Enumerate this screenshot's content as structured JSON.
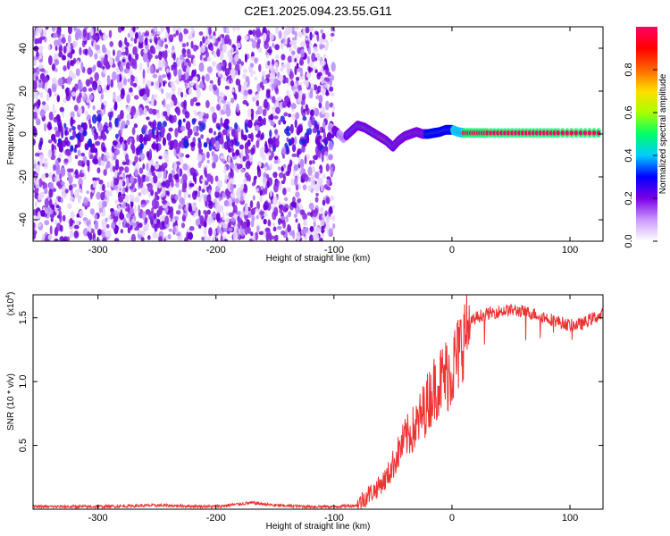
{
  "title": "C2E1.2025.094.23.55.G11",
  "chart_data": [
    {
      "type": "heatmap",
      "xlabel": "Height of straight line (km)",
      "ylabel": "Frequency (Hz)",
      "xlim": [
        -355,
        128
      ],
      "ylim": [
        -50,
        50
      ],
      "xticks": [
        -300,
        -200,
        -100,
        0,
        100
      ],
      "yticks": [
        -40,
        -20,
        0,
        20,
        40
      ],
      "colorbar": {
        "label": "Normalized spectral amplitude",
        "range": [
          0,
          1
        ],
        "ticks": [
          0.0,
          0.2,
          0.4,
          0.6,
          0.8
        ],
        "colors": [
          "#ffffff",
          "#cc99ff",
          "#7a00e6",
          "#0000ff",
          "#00ccff",
          "#00ff66",
          "#aaff00",
          "#ffdd00",
          "#ff6600",
          "#ff0000",
          "#ff0066"
        ]
      },
      "noise_region": {
        "x_range": [
          -355,
          -100
        ],
        "freq_range": [
          -50,
          50
        ]
      },
      "signal_track": {
        "x": [
          -103,
          -98,
          -92,
          -86,
          -80,
          -74,
          -68,
          -62,
          -56,
          -50,
          -45,
          -40,
          -35,
          -30,
          -25,
          -20,
          -15,
          -10,
          -5,
          0,
          5,
          10,
          30,
          60,
          90,
          128
        ],
        "freq": [
          3,
          1,
          -2,
          1,
          4,
          3,
          1,
          -1,
          -3,
          -6,
          -3,
          -1,
          0,
          1,
          0,
          0,
          0.5,
          1,
          2,
          2,
          1,
          0.5,
          0.5,
          0.5,
          0.5,
          0.5
        ],
        "intensity": [
          0.3,
          0.35,
          0.3,
          0.4,
          0.45,
          0.5,
          0.5,
          0.55,
          0.55,
          0.5,
          0.45,
          0.55,
          0.5,
          0.55,
          0.5,
          0.6,
          0.65,
          0.7,
          0.7,
          0.75,
          0.9,
          1.0,
          1.0,
          1.0,
          1.0,
          1.0
        ]
      }
    },
    {
      "type": "line",
      "xlabel": "Height of straight line (km)",
      "ylabel": "SNR (10 * v/v)",
      "scale_label": "(x10",
      "scale_exponent": "4",
      "xlim": [
        -355,
        128
      ],
      "ylim": [
        0,
        1.68
      ],
      "xticks": [
        -300,
        -200,
        -100,
        0,
        100
      ],
      "yticks": [
        0.5,
        1.0,
        1.5
      ],
      "ytick_labels": [
        "0.5",
        "1.0",
        "1.5"
      ],
      "series": [
        {
          "color": "#ee3333",
          "x": [
            -355,
            -300,
            -250,
            -200,
            -170,
            -150,
            -120,
            -100,
            -80,
            -75,
            -70,
            -65,
            -60,
            -55,
            -50,
            -45,
            -40,
            -35,
            -30,
            -25,
            -20,
            -15,
            -10,
            -5,
            0,
            5,
            10,
            15,
            20,
            25,
            30,
            40,
            50,
            60,
            70,
            80,
            90,
            100,
            110,
            120,
            128
          ],
          "y": [
            0.02,
            0.02,
            0.03,
            0.02,
            0.05,
            0.03,
            0.02,
            0.02,
            0.03,
            0.08,
            0.12,
            0.15,
            0.2,
            0.25,
            0.35,
            0.45,
            0.55,
            0.6,
            0.65,
            0.75,
            0.85,
            0.95,
            1.0,
            1.05,
            1.1,
            1.2,
            1.35,
            1.45,
            1.5,
            1.52,
            1.53,
            1.55,
            1.56,
            1.55,
            1.53,
            1.5,
            1.47,
            1.44,
            1.45,
            1.5,
            1.52
          ]
        }
      ]
    }
  ]
}
